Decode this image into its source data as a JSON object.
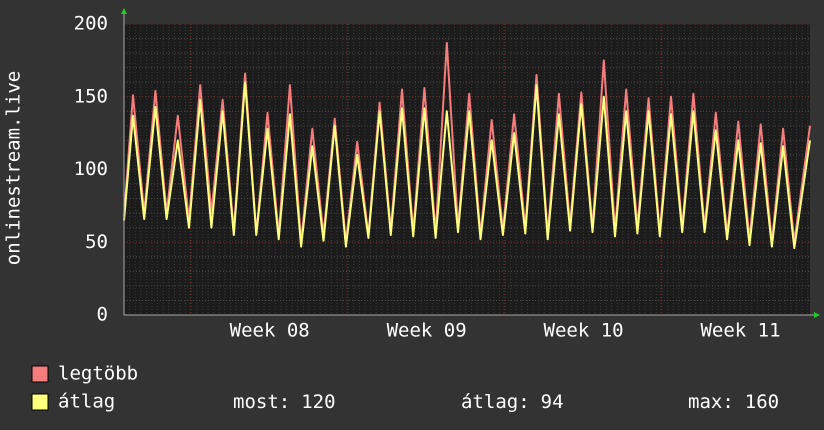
{
  "chart_data": {
    "type": "line",
    "y_label": "onlinestream.live",
    "x": [
      0,
      0.4,
      0.9,
      1.4,
      1.9,
      2.4,
      2.9,
      3.4,
      3.9,
      4.4,
      4.9,
      5.4,
      5.9,
      6.4,
      6.9,
      7.4,
      7.9,
      8.4,
      8.9,
      9.4,
      9.9,
      10.4,
      10.9,
      11.4,
      11.9,
      12.4,
      12.9,
      13.4,
      13.9,
      14.4,
      14.9,
      15.4,
      15.9,
      16.4,
      16.9,
      17.4,
      17.9,
      18.4,
      18.9,
      19.4,
      19.9,
      20.4,
      20.9,
      21.4,
      21.9,
      22.4,
      22.9,
      23.4,
      23.9,
      24.4,
      24.9,
      25.4,
      25.9,
      26.4,
      26.9,
      27.4,
      27.9,
      28.4,
      28.9,
      29.4,
      29.9,
      30.6
    ],
    "series": [
      {
        "name": "legtöbb",
        "color": "#f47c7c",
        "values": [
          68,
          151,
          70,
          154,
          70,
          137,
          65,
          158,
          70,
          148,
          58,
          166,
          56,
          139,
          55,
          158,
          50,
          128,
          55,
          135,
          50,
          119,
          55,
          146,
          58,
          155,
          57,
          156,
          56,
          187,
          60,
          152,
          55,
          134,
          58,
          138,
          60,
          165,
          55,
          152,
          62,
          153,
          60,
          175,
          58,
          155,
          60,
          149,
          57,
          150,
          60,
          152,
          60,
          139,
          55,
          133,
          52,
          131,
          50,
          128,
          50,
          130
        ]
      },
      {
        "name": "átlag",
        "color": "#ffff80",
        "values": [
          65,
          137,
          66,
          143,
          66,
          120,
          60,
          148,
          60,
          140,
          55,
          160,
          55,
          128,
          52,
          138,
          47,
          116,
          51,
          130,
          47,
          110,
          53,
          140,
          55,
          142,
          54,
          142,
          53,
          140,
          57,
          140,
          52,
          120,
          55,
          125,
          56,
          158,
          52,
          138,
          58,
          145,
          57,
          150,
          54,
          140,
          56,
          140,
          54,
          138,
          57,
          140,
          57,
          127,
          52,
          120,
          48,
          118,
          47,
          116,
          46,
          120
        ]
      }
    ],
    "xlim": [
      0,
      30.6
    ],
    "xticks": [
      {
        "value": 6.5,
        "label": "Week 08"
      },
      {
        "value": 13.5,
        "label": "Week 09"
      },
      {
        "value": 20.5,
        "label": "Week 10"
      },
      {
        "value": 27.5,
        "label": "Week 11"
      }
    ],
    "major_grid_x": [
      2.95,
      9.95,
      16.95,
      23.95
    ],
    "ylim": [
      0,
      200
    ],
    "yticks": [
      0,
      50,
      100,
      150,
      200
    ],
    "minor_ystep": 10,
    "minor_xstep": 0.25,
    "grid": true,
    "stats": [
      {
        "label": "most:",
        "value": 120
      },
      {
        "label": "átlag:",
        "value": 94
      },
      {
        "label": "max:",
        "value": 160
      }
    ]
  }
}
